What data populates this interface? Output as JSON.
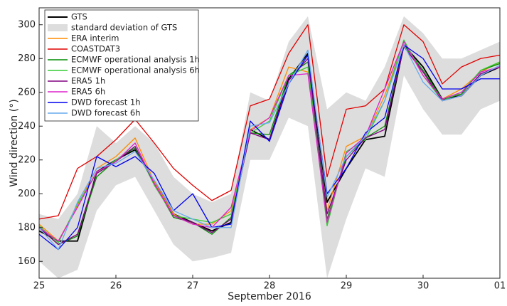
{
  "chart_data": {
    "type": "line",
    "xlabel": "September 2016",
    "ylabel": "Wind direction (°)",
    "x": [
      25,
      25.25,
      25.5,
      25.75,
      26,
      26.25,
      26.5,
      26.75,
      27,
      27.25,
      27.5,
      27.75,
      28,
      28.25,
      28.5,
      28.75,
      29,
      29.25,
      29.5,
      29.75,
      30,
      30.25,
      30.5,
      30.75,
      31
    ],
    "xlim": [
      25,
      31
    ],
    "xticks": [
      25,
      26,
      27,
      28,
      29,
      30,
      {
        "value": 31,
        "label": "01"
      }
    ],
    "ylim": [
      150,
      310
    ],
    "yticks": [
      160,
      180,
      200,
      220,
      240,
      260,
      280,
      300
    ],
    "series": [
      {
        "name": "GTS",
        "color": "#000000",
        "values": [
          178,
          172,
          172,
          213,
          220,
          226,
          207,
          188,
          183,
          178,
          183,
          238,
          232,
          268,
          283,
          195,
          215,
          232,
          234,
          288,
          275,
          256,
          258,
          270,
          275
        ]
      },
      {
        "name": "standard deviation of GTS",
        "color": "#dddddd",
        "band": true,
        "upper": [
          188,
          185,
          200,
          240,
          230,
          240,
          230,
          210,
          200,
          195,
          200,
          260,
          255,
          290,
          305,
          250,
          260,
          255,
          275,
          305,
          295,
          280,
          280,
          285,
          290
        ],
        "lower": [
          160,
          150,
          155,
          190,
          205,
          210,
          190,
          170,
          160,
          162,
          165,
          220,
          220,
          245,
          240,
          150,
          185,
          215,
          210,
          270,
          250,
          235,
          235,
          250,
          255
        ]
      },
      {
        "name": "ERA interim",
        "color": "#ff8c00",
        "values": [
          182,
          172,
          193,
          215,
          222,
          233,
          207,
          188,
          182,
          182,
          190,
          238,
          245,
          275,
          272,
          190,
          228,
          234,
          258,
          290,
          270,
          256,
          262,
          272,
          278
        ]
      },
      {
        "name": "COASTDAT3",
        "color": "#e00000",
        "values": [
          185,
          187,
          215,
          222,
          232,
          244,
          230,
          215,
          205,
          196,
          202,
          252,
          256,
          283,
          300,
          210,
          250,
          252,
          262,
          300,
          290,
          265,
          275,
          280,
          282
        ]
      },
      {
        "name": "ECMWF operational analysis 1h",
        "color": "#008c00",
        "values": [
          180,
          170,
          175,
          210,
          220,
          227,
          206,
          186,
          183,
          176,
          186,
          236,
          235,
          270,
          278,
          185,
          222,
          233,
          240,
          288,
          273,
          256,
          259,
          273,
          277
        ]
      },
      {
        "name": "ECMWF operational analysis 6h",
        "color": "#33cc33",
        "values": [
          181,
          171,
          194,
          212,
          220,
          228,
          205,
          187,
          185,
          183,
          188,
          236,
          243,
          270,
          275,
          181,
          225,
          232,
          255,
          291,
          270,
          255,
          260,
          273,
          278
        ]
      },
      {
        "name": "ERA5 1h",
        "color": "#800080",
        "values": [
          180,
          170,
          176,
          212,
          219,
          228,
          206,
          187,
          183,
          177,
          185,
          236,
          232,
          267,
          280,
          188,
          220,
          233,
          238,
          287,
          272,
          255,
          258,
          271,
          275
        ]
      },
      {
        "name": "ERA5 6h",
        "color": "#dd22cc",
        "values": [
          180,
          172,
          192,
          213,
          219,
          230,
          206,
          187,
          182,
          180,
          192,
          237,
          245,
          270,
          271,
          183,
          224,
          234,
          262,
          290,
          270,
          256,
          260,
          272,
          275
        ]
      },
      {
        "name": "DWD forecast 1h",
        "color": "#0000ee",
        "values": [
          176,
          167,
          180,
          222,
          216,
          222,
          212,
          190,
          200,
          180,
          182,
          243,
          231,
          265,
          282,
          200,
          215,
          236,
          245,
          288,
          280,
          262,
          262,
          268,
          268
        ]
      },
      {
        "name": "DWD forecast 6h",
        "color": "#66aaee",
        "values": [
          180,
          167,
          195,
          215,
          218,
          225,
          208,
          190,
          185,
          180,
          180,
          240,
          242,
          265,
          285,
          198,
          222,
          234,
          255,
          288,
          266,
          255,
          258,
          270,
          276
        ]
      }
    ]
  }
}
